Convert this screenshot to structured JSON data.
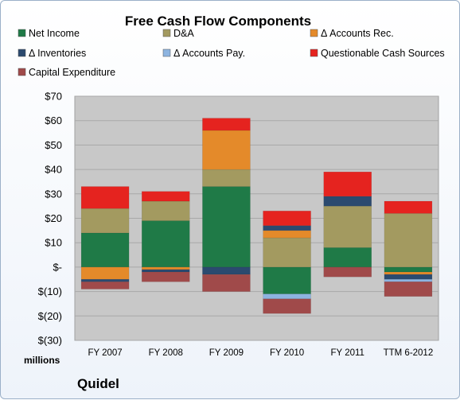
{
  "chart_data": {
    "type": "bar",
    "stacked": true,
    "title": "Free Cash Flow Components",
    "ylabel": "millions",
    "company": "Quidel",
    "ylim": [
      -30,
      70
    ],
    "yticks": [
      "$70",
      "$60",
      "$50",
      "$40",
      "$30",
      "$20",
      "$10",
      "$-",
      "$(10)",
      "$(20)",
      "$(30)"
    ],
    "categories": [
      "FY 2007",
      "FY 2008",
      "FY 2009",
      "FY 2010",
      "FY 2011",
      "TTM 6-2012"
    ],
    "series": [
      {
        "name": "Net Income",
        "color": "#1f7a47",
        "values": [
          14,
          19,
          33,
          -11,
          8,
          -2
        ]
      },
      {
        "name": "D&A",
        "color": "#a39a60",
        "values": [
          10,
          8,
          7,
          12,
          17,
          22
        ]
      },
      {
        "name": "Δ Accounts Rec.",
        "color": "#e48a2a",
        "values": [
          -5,
          -1,
          16,
          3,
          0,
          -1
        ]
      },
      {
        "name": "Δ Inventories",
        "color": "#2b4a6f",
        "values": [
          -1,
          -1,
          -3,
          2,
          4,
          -2
        ]
      },
      {
        "name": "Δ Accounts Pay.",
        "color": "#8db4e0",
        "values": [
          0,
          0,
          0,
          -2,
          0,
          -1
        ]
      },
      {
        "name": "Questionable Cash Sources",
        "color": "#e5231f",
        "values": [
          9,
          4,
          5,
          6,
          10,
          5
        ]
      },
      {
        "name": "Capital Expenditure",
        "color": "#a04a4a",
        "values": [
          -3,
          -4,
          -7,
          -6,
          -4,
          -6
        ]
      }
    ]
  }
}
